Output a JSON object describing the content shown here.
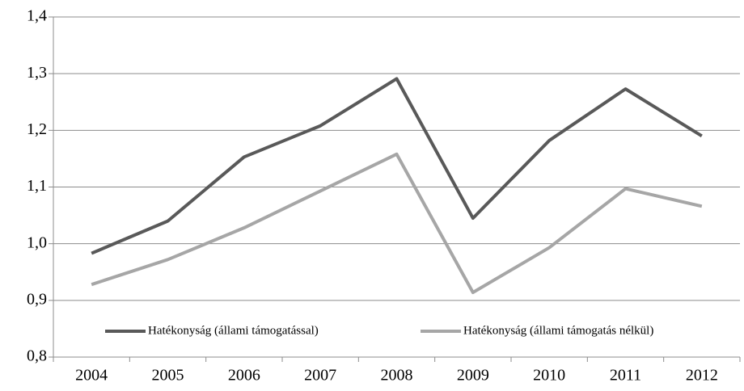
{
  "chart_data": {
    "type": "line",
    "categories": [
      "2004",
      "2005",
      "2006",
      "2007",
      "2008",
      "2009",
      "2010",
      "2011",
      "2012"
    ],
    "series": [
      {
        "name": "Hatékonyság (állami támogatással)",
        "color": "#595959",
        "values": [
          0.983,
          1.04,
          1.153,
          1.208,
          1.291,
          1.045,
          1.182,
          1.273,
          1.19
        ]
      },
      {
        "name": "Hatékonyság (állami támogatás nélkül)",
        "color": "#a6a6a6",
        "values": [
          0.928,
          0.972,
          1.028,
          1.093,
          1.158,
          0.914,
          0.993,
          1.097,
          1.066
        ]
      }
    ],
    "ylim": [
      0.8,
      1.4
    ],
    "yticks": [
      {
        "value": 0.8,
        "label": "0,8"
      },
      {
        "value": 0.9,
        "label": "0,9"
      },
      {
        "value": 1.0,
        "label": "1,0"
      },
      {
        "value": 1.1,
        "label": "1,1"
      },
      {
        "value": 1.2,
        "label": "1,2"
      },
      {
        "value": 1.3,
        "label": "1,3"
      },
      {
        "value": 1.4,
        "label": "1,4"
      }
    ],
    "grid": true,
    "legend": "bottom"
  }
}
